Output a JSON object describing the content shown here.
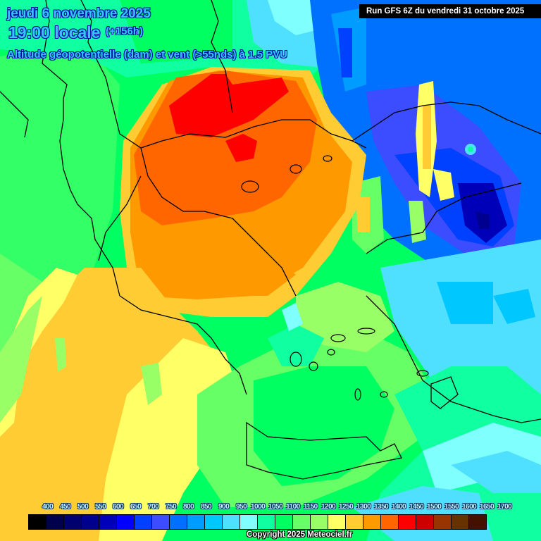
{
  "header": {
    "date": "jeudi 6 novembre 2025",
    "time": "19:00 locale",
    "lead": "(+156h)",
    "parameter": "Altitude géopotentielle (dam) et vent (>55nds) à 1.5 PVU",
    "run": "Run GFS 6Z du vendredi 31 octobre 2025"
  },
  "legend": {
    "labels": [
      "400",
      "450",
      "500",
      "550",
      "600",
      "650",
      "700",
      "750",
      "800",
      "850",
      "900",
      "950",
      "1000",
      "1050",
      "1100",
      "1150",
      "1200",
      "1250",
      "1300",
      "1350",
      "1400",
      "1450",
      "1500",
      "1550",
      "1600",
      "1650",
      "1700"
    ],
    "colors": [
      "#000000",
      "#00004c",
      "#000070",
      "#000090",
      "#0000b8",
      "#0000ff",
      "#0040ff",
      "#3c4cff",
      "#0070ff",
      "#009cff",
      "#00c8ff",
      "#50e0ff",
      "#80ffff",
      "#10ffa0",
      "#00ff60",
      "#66ff66",
      "#99ff66",
      "#ffff66",
      "#ffcc33",
      "#ff9900",
      "#ff6600",
      "#ff0000",
      "#cc0000",
      "#993300",
      "#663300",
      "#441100"
    ]
  },
  "footer": {
    "copyright": "Copyright 2025 Meteociel.fr"
  },
  "map": {
    "region": "Balkans / Greece / Aegean / Western Turkey",
    "field_colors": {
      "high_red": "#ff0000",
      "orange_dark": "#ff6600",
      "orange": "#ff9900",
      "amber": "#ffcc33",
      "yellow": "#ffff66",
      "lightgreen": "#99ff66",
      "green": "#66ff66",
      "brightgreen": "#00ff60",
      "seagreen": "#10ffa0",
      "cyan_light": "#80ffff",
      "cyan": "#50e0ff",
      "sky": "#00c8ff",
      "blue_light": "#009cff",
      "blue": "#0070ff",
      "blue_mid": "#3c4cff",
      "blue_deep": "#0040ff",
      "navy": "#0000b8"
    }
  }
}
